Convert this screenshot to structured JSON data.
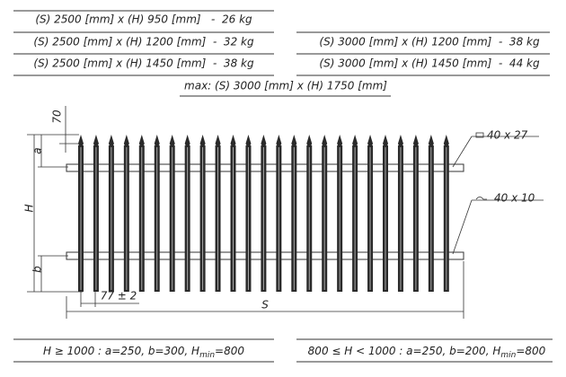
{
  "variants": [
    "(S) 2500 [mm] x (H) 950 [mm]   -  26 kg",
    "(S) 2500 [mm] x (H) 1200 [mm]  -  32 kg",
    "(S) 2500 [mm] x (H) 1450 [mm]  -  38 kg",
    "(S) 3000 [mm] x (H) 1200 [mm]  -  38 kg",
    "(S) 3000 [mm] x (H) 1450 [mm]  -  44 kg"
  ],
  "max": "max: (S) 3000 [mm] x (H) 1750 [mm]",
  "labels": {
    "top": "70",
    "a": "a",
    "h": "H",
    "b": "b",
    "gap": "77 ± 2",
    "s": "S",
    "rail_top": "40 x 27",
    "rail_bottom": "40 x 10"
  },
  "footer": {
    "left": {
      "main": "H ≥ 1000 : a=250, b=300, H",
      "sub": "min",
      "end": "=800"
    },
    "right": {
      "main": "800 ≤ H < 1000 : a=250, b=200, H",
      "sub": "min",
      "end": "=800"
    }
  }
}
